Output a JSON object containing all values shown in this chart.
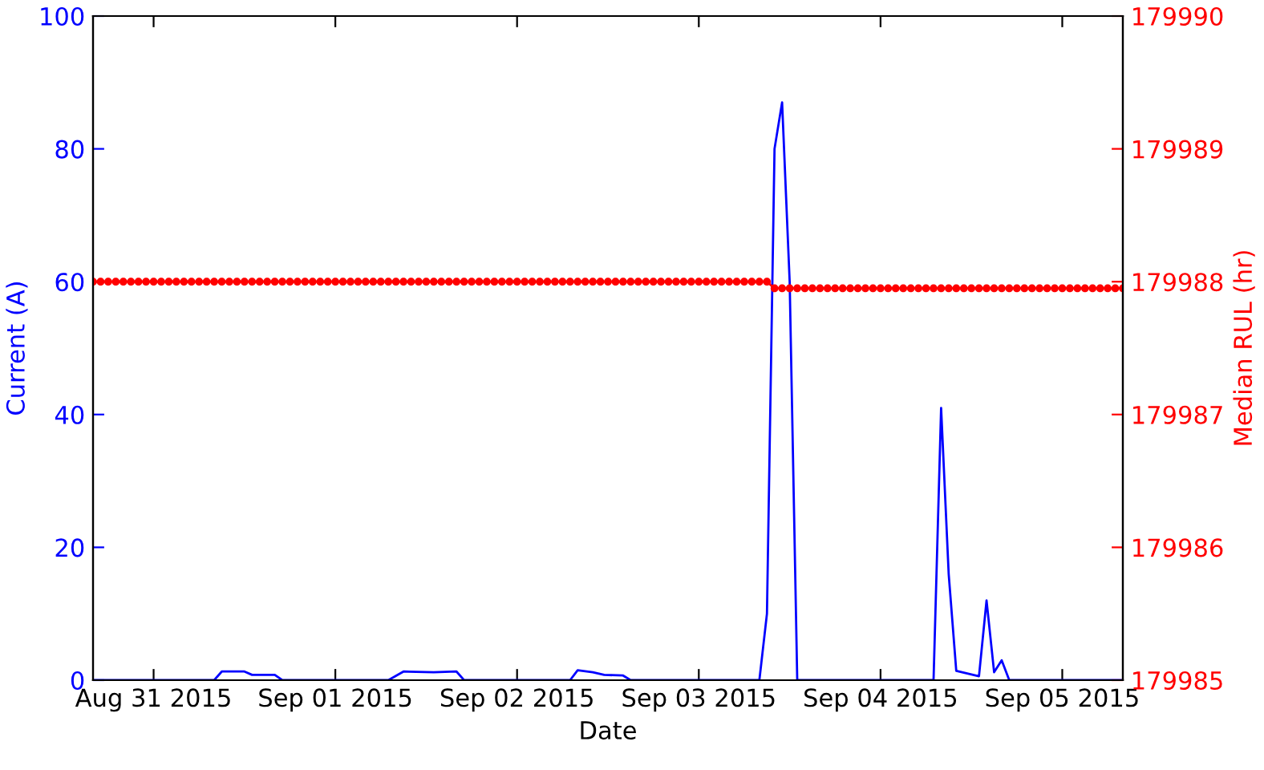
{
  "chart_data": {
    "type": "line",
    "xlabel": "Date",
    "ylabel": "Current (A)",
    "y2label": "Median RUL (hr)",
    "xlim": [
      "2015-08-30T16:00",
      "2015-09-05T08:00"
    ],
    "xticks": [
      {
        "value": "2015-08-31",
        "label": "Aug 31 2015"
      },
      {
        "value": "2015-09-01",
        "label": "Sep 01 2015"
      },
      {
        "value": "2015-09-02",
        "label": "Sep 02 2015"
      },
      {
        "value": "2015-09-03",
        "label": "Sep 03 2015"
      },
      {
        "value": "2015-09-04",
        "label": "Sep 04 2015"
      },
      {
        "value": "2015-09-05",
        "label": "Sep 05 2015"
      }
    ],
    "ylim": [
      0,
      100
    ],
    "yticks": [
      0,
      20,
      40,
      60,
      80,
      100
    ],
    "y2lim": [
      179985,
      179990
    ],
    "y2ticks": [
      179985,
      179986,
      179987,
      179988,
      179989,
      179990
    ],
    "grid": false,
    "series": [
      {
        "color": "#0000ff",
        "marker": "none",
        "line_style": "solid",
        "x": [
          "2015-08-30T16:00",
          "2015-08-31T08:00",
          "2015-08-31T09:00",
          "2015-08-31T12:00",
          "2015-08-31T13:00",
          "2015-08-31T16:00",
          "2015-08-31T17:00",
          "2015-09-01T07:00",
          "2015-09-01T09:00",
          "2015-09-01T13:00",
          "2015-09-01T16:00",
          "2015-09-01T17:00",
          "2015-09-02T07:00",
          "2015-09-02T08:00",
          "2015-09-02T10:00",
          "2015-09-02T11:30",
          "2015-09-02T14:00",
          "2015-09-02T15:00",
          "2015-09-03T08:00",
          "2015-09-03T09:00",
          "2015-09-03T10:00",
          "2015-09-03T11:00",
          "2015-09-03T12:00",
          "2015-09-03T13:00",
          "2015-09-04T07:00",
          "2015-09-04T08:00",
          "2015-09-04T09:00",
          "2015-09-04T10:00",
          "2015-09-04T13:00",
          "2015-09-04T14:00",
          "2015-09-04T15:00",
          "2015-09-04T16:00",
          "2015-09-04T17:00",
          "2015-09-05T08:00"
        ],
        "values": [
          0,
          0,
          1.3,
          1.3,
          0.8,
          0.8,
          0,
          0,
          1.3,
          1.2,
          1.3,
          0,
          0,
          1.5,
          1.2,
          0.8,
          0.7,
          0,
          0,
          10,
          80,
          87,
          60,
          0,
          0,
          41,
          16,
          1.4,
          0.6,
          12,
          1.2,
          3,
          0,
          0
        ]
      },
      {
        "axis": "y2",
        "color": "#ff0000",
        "marker": "circle",
        "line_style": "solid",
        "x": [
          "2015-08-30T16:00",
          "2015-08-30T17:00",
          "2015-08-30T18:00",
          "2015-08-30T19:00",
          "2015-08-30T20:00",
          "2015-08-30T21:00",
          "2015-08-30T22:00",
          "2015-08-30T23:00",
          "2015-08-31T00:00",
          "2015-08-31T01:00",
          "2015-08-31T02:00",
          "2015-08-31T03:00",
          "2015-08-31T04:00",
          "2015-08-31T05:00",
          "2015-08-31T06:00",
          "2015-08-31T07:00",
          "2015-08-31T08:00",
          "2015-08-31T09:00",
          "2015-08-31T10:00",
          "2015-08-31T11:00",
          "2015-08-31T12:00",
          "2015-08-31T13:00",
          "2015-08-31T14:00",
          "2015-08-31T15:00",
          "2015-08-31T16:00",
          "2015-08-31T17:00",
          "2015-08-31T18:00",
          "2015-08-31T19:00",
          "2015-08-31T20:00",
          "2015-08-31T21:00",
          "2015-08-31T22:00",
          "2015-08-31T23:00",
          "2015-09-01T00:00",
          "2015-09-01T01:00",
          "2015-09-01T02:00",
          "2015-09-01T03:00",
          "2015-09-01T04:00",
          "2015-09-01T05:00",
          "2015-09-01T06:00",
          "2015-09-01T07:00",
          "2015-09-01T08:00",
          "2015-09-01T09:00",
          "2015-09-01T10:00",
          "2015-09-01T11:00",
          "2015-09-01T12:00",
          "2015-09-01T13:00",
          "2015-09-01T14:00",
          "2015-09-01T15:00",
          "2015-09-01T16:00",
          "2015-09-01T17:00",
          "2015-09-01T18:00",
          "2015-09-01T19:00",
          "2015-09-01T20:00",
          "2015-09-01T21:00",
          "2015-09-01T22:00",
          "2015-09-01T23:00",
          "2015-09-02T00:00",
          "2015-09-02T01:00",
          "2015-09-02T02:00",
          "2015-09-02T03:00",
          "2015-09-02T04:00",
          "2015-09-02T05:00",
          "2015-09-02T06:00",
          "2015-09-02T07:00",
          "2015-09-02T08:00",
          "2015-09-02T09:00",
          "2015-09-02T10:00",
          "2015-09-02T11:00",
          "2015-09-02T12:00",
          "2015-09-02T13:00",
          "2015-09-02T14:00",
          "2015-09-02T15:00",
          "2015-09-02T16:00",
          "2015-09-02T17:00",
          "2015-09-02T18:00",
          "2015-09-02T19:00",
          "2015-09-02T20:00",
          "2015-09-02T21:00",
          "2015-09-02T22:00",
          "2015-09-02T23:00",
          "2015-09-03T00:00",
          "2015-09-03T01:00",
          "2015-09-03T02:00",
          "2015-09-03T03:00",
          "2015-09-03T04:00",
          "2015-09-03T05:00",
          "2015-09-03T06:00",
          "2015-09-03T07:00",
          "2015-09-03T08:00",
          "2015-09-03T09:00",
          "2015-09-03T10:00",
          "2015-09-03T11:00",
          "2015-09-03T12:00",
          "2015-09-03T13:00",
          "2015-09-03T14:00",
          "2015-09-03T15:00",
          "2015-09-03T16:00",
          "2015-09-03T17:00",
          "2015-09-03T18:00",
          "2015-09-03T19:00",
          "2015-09-03T20:00",
          "2015-09-03T21:00",
          "2015-09-03T22:00",
          "2015-09-03T23:00",
          "2015-09-04T00:00",
          "2015-09-04T01:00",
          "2015-09-04T02:00",
          "2015-09-04T03:00",
          "2015-09-04T04:00",
          "2015-09-04T05:00",
          "2015-09-04T06:00",
          "2015-09-04T07:00",
          "2015-09-04T08:00",
          "2015-09-04T09:00",
          "2015-09-04T10:00",
          "2015-09-04T11:00",
          "2015-09-04T12:00",
          "2015-09-04T13:00",
          "2015-09-04T14:00",
          "2015-09-04T15:00",
          "2015-09-04T16:00",
          "2015-09-04T17:00",
          "2015-09-04T18:00",
          "2015-09-04T19:00",
          "2015-09-04T20:00",
          "2015-09-04T21:00",
          "2015-09-04T22:00",
          "2015-09-04T23:00",
          "2015-09-05T00:00",
          "2015-09-05T01:00",
          "2015-09-05T02:00",
          "2015-09-05T03:00",
          "2015-09-05T04:00",
          "2015-09-05T05:00",
          "2015-09-05T06:00",
          "2015-09-05T07:00",
          "2015-09-05T08:00"
        ],
        "values": [
          179988,
          179988,
          179988,
          179988,
          179988,
          179988,
          179988,
          179988,
          179988,
          179988,
          179988,
          179988,
          179988,
          179988,
          179988,
          179988,
          179988,
          179988,
          179988,
          179988,
          179988,
          179988,
          179988,
          179988,
          179988,
          179988,
          179988,
          179988,
          179988,
          179988,
          179988,
          179988,
          179988,
          179988,
          179988,
          179988,
          179988,
          179988,
          179988,
          179988,
          179988,
          179988,
          179988,
          179988,
          179988,
          179988,
          179988,
          179988,
          179988,
          179988,
          179988,
          179988,
          179988,
          179988,
          179988,
          179988,
          179988,
          179988,
          179988,
          179988,
          179988,
          179988,
          179988,
          179988,
          179988,
          179988,
          179988,
          179988,
          179988,
          179988,
          179988,
          179988,
          179988,
          179988,
          179988,
          179988,
          179988,
          179988,
          179988,
          179988,
          179988,
          179988,
          179988,
          179988,
          179988,
          179988,
          179988,
          179988,
          179988,
          179988,
          179987.95,
          179987.95,
          179987.95,
          179987.95,
          179987.95,
          179987.95,
          179987.95,
          179987.95,
          179987.95,
          179987.95,
          179987.95,
          179987.95,
          179987.95,
          179987.95,
          179987.95,
          179987.95,
          179987.95,
          179987.95,
          179987.95,
          179987.95,
          179987.95,
          179987.95,
          179987.95,
          179987.95,
          179987.95,
          179987.95,
          179987.95,
          179987.95,
          179987.95,
          179987.95,
          179987.95,
          179987.95,
          179987.95,
          179987.95,
          179987.95,
          179987.95,
          179987.95,
          179987.95,
          179987.95,
          179987.95,
          179987.95,
          179987.95,
          179987.95,
          179987.95,
          179987.95,
          179987.95,
          179987.95
        ]
      }
    ]
  }
}
